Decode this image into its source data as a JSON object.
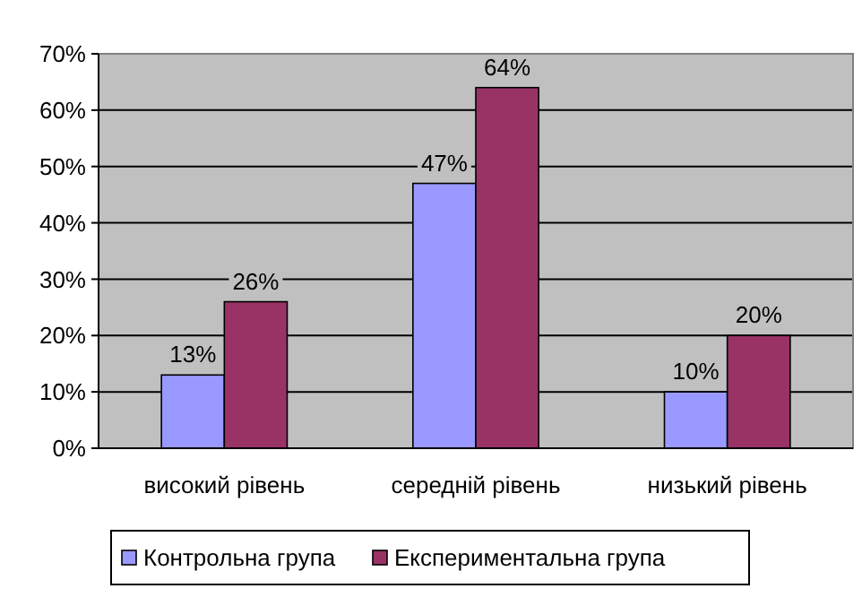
{
  "chart_data": {
    "type": "bar",
    "categories": [
      "високий рівень",
      "середній рівень",
      "низький рівень"
    ],
    "series": [
      {
        "name": "Контрольна група",
        "color": "#9999ff",
        "values": [
          13,
          47,
          10
        ],
        "value_labels": [
          "13%",
          "47%",
          "10%"
        ]
      },
      {
        "name": "Експериментальна група",
        "color": "#993366",
        "values": [
          26,
          64,
          20
        ],
        "value_labels": [
          "26%",
          "64%",
          "20%"
        ]
      }
    ],
    "ylim": [
      0,
      70
    ],
    "yticks": [
      {
        "value": 0,
        "label": "0%"
      },
      {
        "value": 10,
        "label": "10%"
      },
      {
        "value": 20,
        "label": "20%"
      },
      {
        "value": 30,
        "label": "30%"
      },
      {
        "value": 40,
        "label": "40%"
      },
      {
        "value": 50,
        "label": "50%"
      },
      {
        "value": 60,
        "label": "60%"
      },
      {
        "value": 70,
        "label": "70%"
      }
    ],
    "grid": "y",
    "legend": "bottom"
  }
}
